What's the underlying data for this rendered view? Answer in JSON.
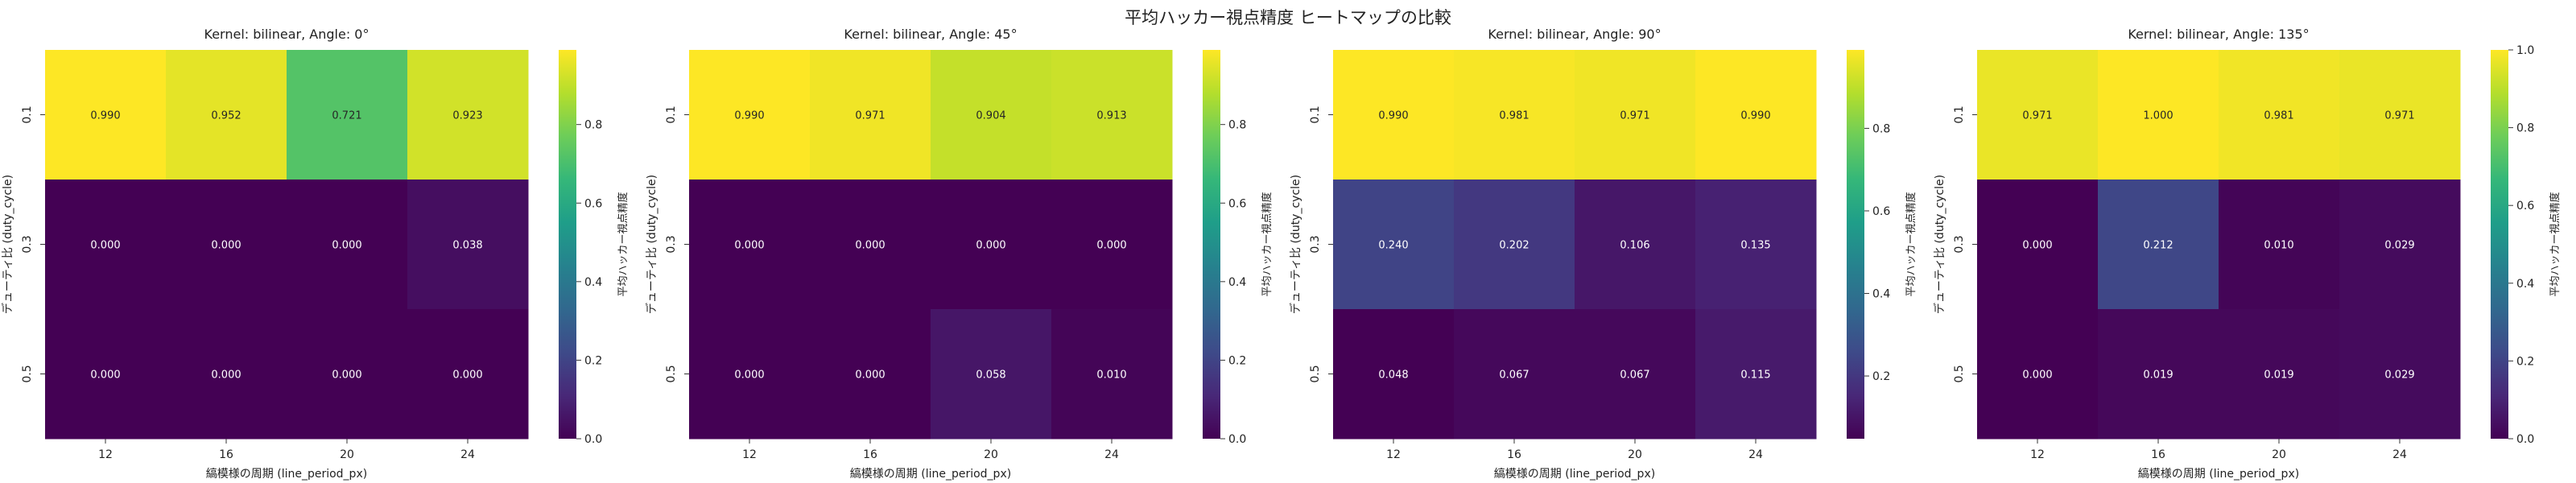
{
  "figure": {
    "suptitle": "平均ハッカー視点精度 ヒートマップの比較"
  },
  "chart_data": [
    {
      "type": "heatmap",
      "title": "Kernel: bilinear, Angle: 0°",
      "xlabel": "縞模様の周期 (line_period_px)",
      "ylabel": "デューティ比 (duty_cycle)",
      "x": [
        "12",
        "16",
        "20",
        "24"
      ],
      "y": [
        "0.1",
        "0.3",
        "0.5"
      ],
      "values": [
        [
          0.99,
          0.952,
          0.721,
          0.923
        ],
        [
          0.0,
          0.0,
          0.0,
          0.038
        ],
        [
          0.0,
          0.0,
          0.0,
          0.0
        ]
      ],
      "cell_labels": [
        [
          "0.990",
          "0.952",
          "0.721",
          "0.923"
        ],
        [
          "0.000",
          "0.000",
          "0.000",
          "0.038"
        ],
        [
          "0.000",
          "0.000",
          "0.000",
          "0.000"
        ]
      ],
      "colormap": "viridis",
      "colorbar": {
        "label": "平均ハッカー視点精度",
        "range": [
          0,
          0.99
        ],
        "ticks": [
          "0.0",
          "0.2",
          "0.4",
          "0.6",
          "0.8"
        ],
        "tick_values": [
          0,
          0.2,
          0.4,
          0.6,
          0.8
        ]
      }
    },
    {
      "type": "heatmap",
      "title": "Kernel: bilinear, Angle: 45°",
      "xlabel": "縞模様の周期 (line_period_px)",
      "ylabel": "デューティ比 (duty_cycle)",
      "x": [
        "12",
        "16",
        "20",
        "24"
      ],
      "y": [
        "0.1",
        "0.3",
        "0.5"
      ],
      "values": [
        [
          0.99,
          0.971,
          0.904,
          0.913
        ],
        [
          0.0,
          0.0,
          0.0,
          0.0
        ],
        [
          0.0,
          0.0,
          0.058,
          0.01
        ]
      ],
      "cell_labels": [
        [
          "0.990",
          "0.971",
          "0.904",
          "0.913"
        ],
        [
          "0.000",
          "0.000",
          "0.000",
          "0.000"
        ],
        [
          "0.000",
          "0.000",
          "0.058",
          "0.010"
        ]
      ],
      "colormap": "viridis",
      "colorbar": {
        "label": "平均ハッカー視点精度",
        "range": [
          0,
          0.99
        ],
        "ticks": [
          "0.0",
          "0.2",
          "0.4",
          "0.6",
          "0.8"
        ],
        "tick_values": [
          0,
          0.2,
          0.4,
          0.6,
          0.8
        ]
      }
    },
    {
      "type": "heatmap",
      "title": "Kernel: bilinear, Angle: 90°",
      "xlabel": "縞模様の周期 (line_period_px)",
      "ylabel": "デューティ比 (duty_cycle)",
      "x": [
        "12",
        "16",
        "20",
        "24"
      ],
      "y": [
        "0.1",
        "0.3",
        "0.5"
      ],
      "values": [
        [
          0.99,
          0.981,
          0.971,
          0.99
        ],
        [
          0.24,
          0.202,
          0.106,
          0.135
        ],
        [
          0.048,
          0.067,
          0.067,
          0.115
        ]
      ],
      "cell_labels": [
        [
          "0.990",
          "0.981",
          "0.971",
          "0.990"
        ],
        [
          "0.240",
          "0.202",
          "0.106",
          "0.135"
        ],
        [
          "0.048",
          "0.067",
          "0.067",
          "0.115"
        ]
      ],
      "colormap": "viridis",
      "colorbar": {
        "label": "平均ハッカー視点精度",
        "range": [
          0.048,
          0.99
        ],
        "ticks": [
          "0.2",
          "0.4",
          "0.6",
          "0.8"
        ],
        "tick_values": [
          0.2,
          0.4,
          0.6,
          0.8
        ]
      }
    },
    {
      "type": "heatmap",
      "title": "Kernel: bilinear, Angle: 135°",
      "xlabel": "縞模様の周期 (line_period_px)",
      "ylabel": "デューティ比 (duty_cycle)",
      "x": [
        "12",
        "16",
        "20",
        "24"
      ],
      "y": [
        "0.1",
        "0.3",
        "0.5"
      ],
      "values": [
        [
          0.971,
          1.0,
          0.981,
          0.971
        ],
        [
          0.0,
          0.212,
          0.01,
          0.029
        ],
        [
          0.0,
          0.019,
          0.019,
          0.029
        ]
      ],
      "cell_labels": [
        [
          "0.971",
          "1.000",
          "0.981",
          "0.971"
        ],
        [
          "0.000",
          "0.212",
          "0.010",
          "0.029"
        ],
        [
          "0.000",
          "0.019",
          "0.019",
          "0.029"
        ]
      ],
      "colormap": "viridis",
      "colorbar": {
        "label": "平均ハッカー視点精度",
        "range": [
          0,
          1.0
        ],
        "ticks": [
          "0.0",
          "0.2",
          "0.4",
          "0.6",
          "0.8",
          "1.0"
        ],
        "tick_values": [
          0,
          0.2,
          0.4,
          0.6,
          0.8,
          1.0
        ]
      }
    }
  ]
}
